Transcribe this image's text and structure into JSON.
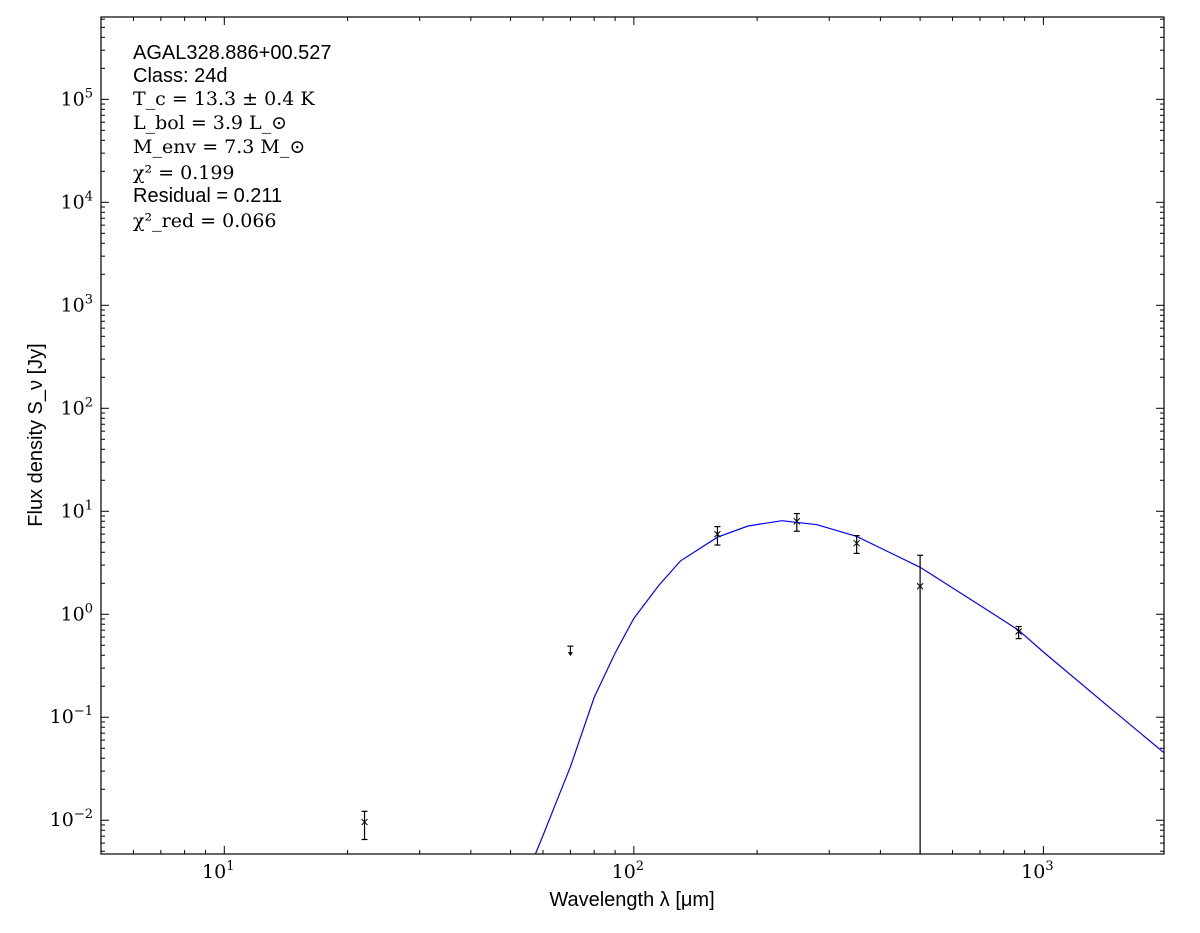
{
  "chart_data": {
    "type": "scatter",
    "xscale": "log",
    "yscale": "log",
    "xlim": [
      5,
      1970
    ],
    "ylim": [
      0.0047,
      630000
    ],
    "xlabel": "Wavelength λ [μm]",
    "ylabel": "Flux density S_ν [Jy]",
    "xticks": [
      {
        "value": 10,
        "base": "10",
        "exp": "1"
      },
      {
        "value": 100,
        "base": "10",
        "exp": "2"
      },
      {
        "value": 1000,
        "base": "10",
        "exp": "3"
      }
    ],
    "yticks": [
      {
        "value": 0.01,
        "base": "10",
        "exp": "−2"
      },
      {
        "value": 0.1,
        "base": "10",
        "exp": "−1"
      },
      {
        "value": 1,
        "base": "10",
        "exp": "0"
      },
      {
        "value": 10,
        "base": "10",
        "exp": "1"
      },
      {
        "value": 100,
        "base": "10",
        "exp": "2"
      },
      {
        "value": 1000,
        "base": "10",
        "exp": "3"
      },
      {
        "value": 10000,
        "base": "10",
        "exp": "4"
      },
      {
        "value": 100000,
        "base": "10",
        "exp": "5"
      }
    ],
    "grid": false,
    "annotations": {
      "source": "AGAL328.886+00.527",
      "class": "Class: 24d",
      "tc": "T_c = 13.3 ± 0.4 K",
      "lbol": "L_bol = 3.9 L_⊙",
      "menv": "M_env = 7.3 M_⊙",
      "chi2": "χ² = 0.199",
      "residual": "Residual = 0.211",
      "chi2red": "χ²_red = 0.066"
    },
    "points": [
      {
        "x": 22,
        "y": 0.0096,
        "yhi": 0.0122,
        "ylo": 0.0065,
        "upper_limit": false
      },
      {
        "x": 70,
        "y": 0.49,
        "upper_limit": true
      },
      {
        "x": 160,
        "y": 6.0,
        "yhi": 7.1,
        "ylo": 4.7,
        "upper_limit": false
      },
      {
        "x": 250,
        "y": 8.0,
        "yhi": 9.5,
        "ylo": 6.4,
        "upper_limit": false
      },
      {
        "x": 350,
        "y": 4.9,
        "yhi": 5.8,
        "ylo": 3.9,
        "upper_limit": false
      },
      {
        "x": 500,
        "y": 1.87,
        "yhi": 3.74,
        "ylo": 0.0001,
        "upper_limit": false
      },
      {
        "x": 870,
        "y": 0.68,
        "yhi": 0.76,
        "ylo": 0.58,
        "upper_limit": false
      }
    ],
    "model_curve": {
      "color": "#0000ff",
      "x": [
        57.5,
        60,
        65,
        70,
        80,
        90,
        100,
        115,
        130,
        160,
        190,
        230,
        280,
        350,
        500,
        700,
        870,
        1000,
        1400,
        2000
      ],
      "y": [
        0.0047,
        0.0071,
        0.0158,
        0.033,
        0.156,
        0.42,
        0.91,
        1.9,
        3.3,
        5.6,
        7.2,
        8.1,
        7.4,
        5.7,
        2.86,
        1.22,
        0.7,
        0.43,
        0.14,
        0.043
      ]
    }
  }
}
